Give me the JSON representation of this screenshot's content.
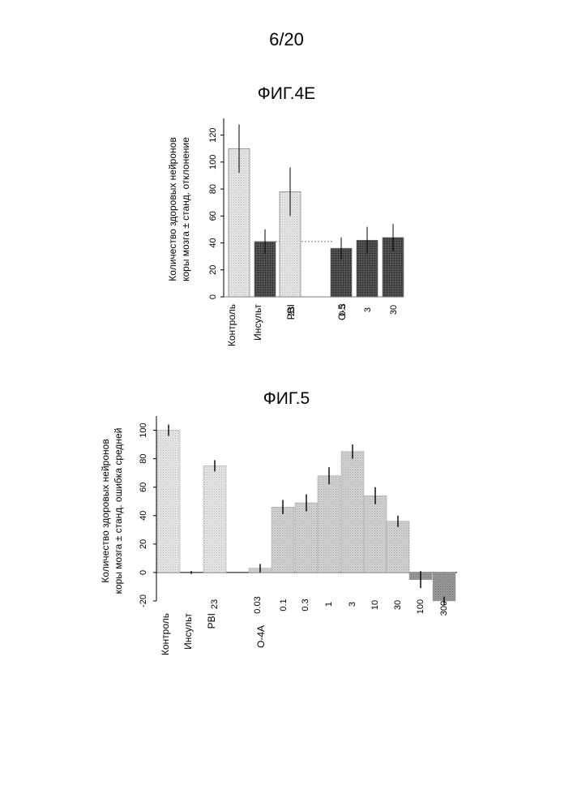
{
  "page": {
    "number": "6/20"
  },
  "figures": [
    {
      "title": "ФИГ.4E"
    },
    {
      "title": "ФИГ.5"
    }
  ],
  "chart_data": [
    {
      "type": "bar",
      "title": "ФИГ.4E",
      "ylabel_lines": [
        "Количество здоровых нейронов",
        "коры мозга ± станд. отклонение"
      ],
      "ylim": [
        0,
        130
      ],
      "yticks": [
        0,
        20,
        40,
        60,
        80,
        100,
        120
      ],
      "grid": false,
      "reference_line": 41,
      "categories": [
        "Контроль",
        "Инсульт",
        "PBI 23",
        "О-5 0.3",
        "О-5 3",
        "О-5 30"
      ],
      "values": [
        110,
        41,
        78,
        36,
        42,
        44
      ],
      "errors": [
        18,
        9,
        18,
        8,
        10,
        10
      ],
      "group_labels": [
        "Контроль",
        "Инсульт",
        "PBI",
        "О-5"
      ],
      "dose_labels": [
        "23",
        "0.3",
        "3",
        "30"
      ]
    },
    {
      "type": "bar",
      "title": "ФИГ.5",
      "ylabel_lines": [
        "Количество здоровых нейронов",
        "коры мозга ± станд. ошибка средней"
      ],
      "ylim": [
        -20,
        110
      ],
      "yticks": [
        -20,
        0,
        20,
        40,
        60,
        80,
        100
      ],
      "grid": false,
      "categories": [
        "Контроль",
        "Инсульт",
        "PBI 23",
        "О-4А 0.03",
        "О-4А 0.1",
        "О-4А 0.3",
        "О-4А 1",
        "О-4А 3",
        "О-4А 10",
        "О-4А 30",
        "О-4А 100",
        "О-4А 300"
      ],
      "values": [
        100,
        0,
        75,
        3,
        46,
        49,
        68,
        85,
        54,
        36,
        -5,
        -20
      ],
      "errors": [
        4,
        1,
        4,
        3,
        5,
        6,
        6,
        5,
        6,
        4,
        6,
        3
      ],
      "group_labels": [
        "Контроль",
        "Инсульт",
        "PBI",
        "О-4А"
      ],
      "dose_labels": [
        "23",
        "0.03",
        "0.1",
        "0.3",
        "1",
        "3",
        "10",
        "30",
        "100",
        "300"
      ]
    }
  ]
}
